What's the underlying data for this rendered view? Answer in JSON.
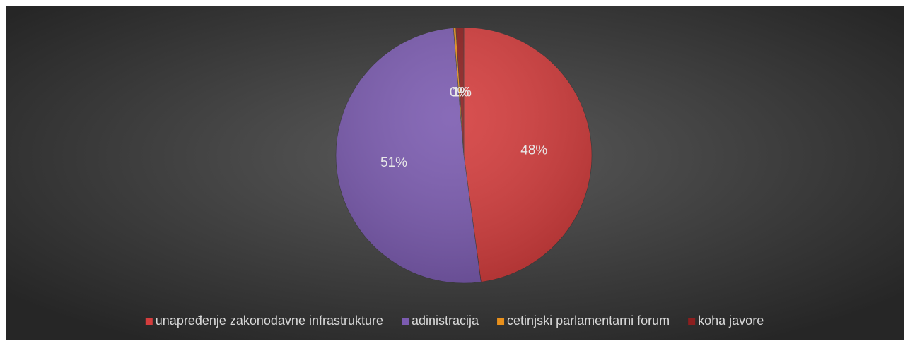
{
  "chart_data": {
    "type": "pie",
    "categories": [
      "unapređenje zakonodavne infrastrukture",
      "adinistracija",
      "cetinjski parlamentarni forum",
      "koha javore"
    ],
    "values": [
      48,
      51,
      0.3,
      1
    ],
    "value_labels": [
      "48%",
      "51%",
      "0%",
      "1%"
    ],
    "colors": [
      "#d43d3d",
      "#7b5bb0",
      "#e8901c",
      "#8c1f1f"
    ],
    "legend": "bottom"
  }
}
